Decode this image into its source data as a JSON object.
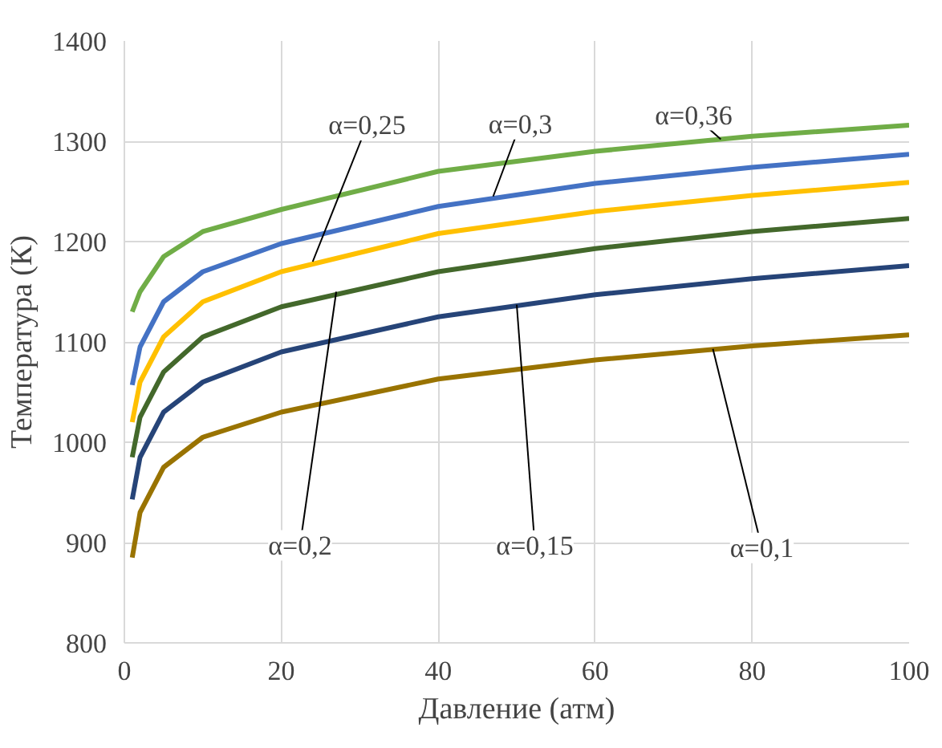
{
  "chart_data": {
    "type": "line",
    "xlabel": "Давление (атм)",
    "ylabel": "Температура (К)",
    "xlim": [
      0,
      100
    ],
    "xticks": [
      0,
      20,
      40,
      60,
      80,
      100
    ],
    "ylim": [
      800,
      1400
    ],
    "yticks": [
      800,
      900,
      1000,
      1100,
      1200,
      1300,
      1400
    ],
    "grid": true,
    "x": [
      1,
      2,
      5,
      10,
      20,
      40,
      60,
      80,
      100
    ],
    "series": [
      {
        "color": "#70ad47",
        "values": [
          1130,
          1150,
          1185,
          1210,
          1232,
          1270,
          1290,
          1305,
          1316
        ]
      },
      {
        "color": "#4472c4",
        "values": [
          1057,
          1095,
          1140,
          1170,
          1198,
          1235,
          1258,
          1274,
          1287
        ]
      },
      {
        "color": "#ffc000",
        "values": [
          1020,
          1060,
          1105,
          1140,
          1170,
          1208,
          1230,
          1246,
          1259
        ]
      },
      {
        "color": "#43682b",
        "values": [
          985,
          1025,
          1070,
          1105,
          1135,
          1170,
          1193,
          1210,
          1223
        ]
      },
      {
        "color": "#264478",
        "values": [
          943,
          985,
          1030,
          1060,
          1090,
          1125,
          1147,
          1163,
          1176
        ]
      },
      {
        "color": "#997300",
        "values": [
          885,
          930,
          975,
          1005,
          1030,
          1063,
          1082,
          1096,
          1107
        ]
      }
    ],
    "annotations": [
      {
        "text": "α=0,25",
        "x": 24,
        "y": 1180
      },
      {
        "text": "α=0,3",
        "x": 47,
        "y": 1245
      },
      {
        "text": "α=0,36",
        "x": 76,
        "y": 1302
      },
      {
        "text": "α=0,2",
        "x": 27,
        "y": 1150
      },
      {
        "text": "α=0,15",
        "x": 50,
        "y": 1137
      },
      {
        "text": "α=0,1",
        "x": 75,
        "y": 1093
      }
    ]
  }
}
